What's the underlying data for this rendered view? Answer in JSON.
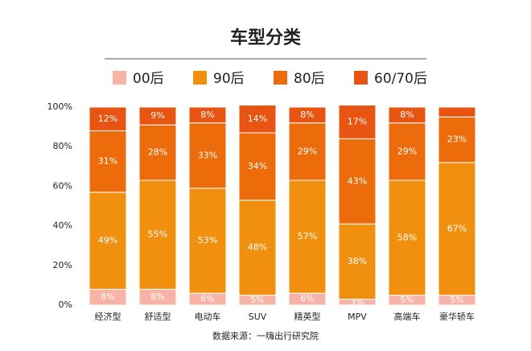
{
  "chart_data": {
    "type": "stacked-bar",
    "title": "车型分类",
    "source": "数据来源：一嗨出行研究院",
    "categories": [
      "经济型",
      "舒适型",
      "电动车",
      "SUV",
      "精英型",
      "MPV",
      "高端车",
      "豪华轿车"
    ],
    "series": [
      {
        "name": "00后",
        "color": "#f8b3a7",
        "values": [
          8,
          8,
          6,
          5,
          6,
          3,
          5,
          5
        ],
        "value_labels": [
          "8%",
          "8%",
          "6%",
          "5%",
          "6%",
          "3%",
          "5%",
          "5%"
        ]
      },
      {
        "name": "90后",
        "color": "#f0900e",
        "values": [
          49,
          55,
          53,
          48,
          57,
          38,
          58,
          67
        ],
        "value_labels": [
          "49%",
          "55%",
          "53%",
          "48%",
          "57%",
          "38%",
          "58%",
          "67%"
        ]
      },
      {
        "name": "80后",
        "color": "#ec6c0c",
        "values": [
          31,
          28,
          33,
          34,
          29,
          43,
          29,
          23
        ],
        "value_labels": [
          "31%",
          "28%",
          "33%",
          "34%",
          "29%",
          "43%",
          "29%",
          "23%"
        ]
      },
      {
        "name": "60/70后",
        "color": "#e85512",
        "values": [
          12,
          9,
          8,
          14,
          8,
          17,
          8,
          5
        ],
        "value_labels": [
          "12%",
          "9%",
          "8%",
          "14%",
          "8%",
          "17%",
          "8%",
          null
        ]
      }
    ],
    "ylim": [
      0,
      100
    ],
    "yticks": [
      {
        "value": 0,
        "label": "0%"
      },
      {
        "value": 20,
        "label": "20%"
      },
      {
        "value": 40,
        "label": "40%"
      },
      {
        "value": 60,
        "label": "60%"
      },
      {
        "value": 80,
        "label": "80%"
      },
      {
        "value": 100,
        "label": "100%"
      }
    ]
  }
}
